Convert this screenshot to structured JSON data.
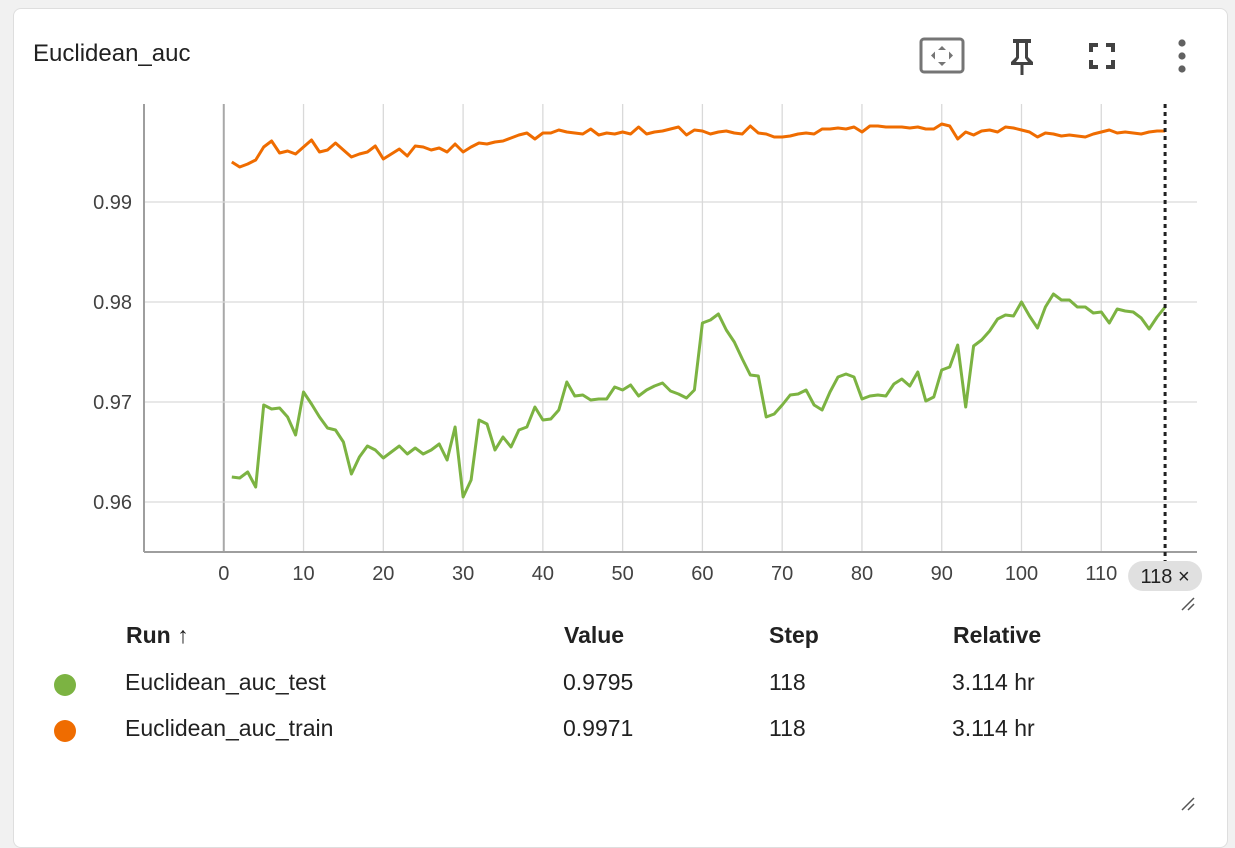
{
  "card": {
    "title": "Euclidean_auc"
  },
  "toolbar": {
    "icons": [
      "fit-domain-icon",
      "pin-icon",
      "fullscreen-icon",
      "more-vert-icon"
    ]
  },
  "colors": {
    "test": "#7cb342",
    "train": "#ef6c00",
    "grid": "#d9d9d9",
    "axis": "#9e9e9e"
  },
  "chart_data": {
    "type": "line",
    "title": "",
    "xlabel": "",
    "ylabel": "",
    "xlim": [
      -10,
      122
    ],
    "ylim": [
      0.955,
      0.9998
    ],
    "x_ticks": [
      0,
      10,
      20,
      30,
      40,
      50,
      60,
      70,
      80,
      90,
      100,
      110
    ],
    "y_ticks": [
      0.96,
      0.97,
      0.98,
      0.99
    ],
    "y_tick_labels": [
      "0.96",
      "0.97",
      "0.98",
      "0.99"
    ],
    "grid": true,
    "hover_step": 118,
    "hover_step_label": "118 ×",
    "series": [
      {
        "name": "Euclidean_auc_test",
        "color": "#7cb342",
        "x": [
          1,
          2,
          3,
          4,
          5,
          6,
          7,
          8,
          9,
          10,
          11,
          12,
          13,
          14,
          15,
          16,
          17,
          18,
          19,
          20,
          21,
          22,
          23,
          24,
          25,
          26,
          27,
          28,
          29,
          30,
          31,
          32,
          33,
          34,
          35,
          36,
          37,
          38,
          39,
          40,
          41,
          42,
          43,
          44,
          45,
          46,
          47,
          48,
          49,
          50,
          51,
          52,
          53,
          54,
          55,
          56,
          57,
          58,
          59,
          60,
          61,
          62,
          63,
          64,
          65,
          66,
          67,
          68,
          69,
          70,
          71,
          72,
          73,
          74,
          75,
          76,
          77,
          78,
          79,
          80,
          81,
          82,
          83,
          84,
          85,
          86,
          87,
          88,
          89,
          90,
          91,
          92,
          93,
          94,
          95,
          96,
          97,
          98,
          99,
          100,
          101,
          102,
          103,
          104,
          105,
          106,
          107,
          108,
          109,
          110,
          111,
          112,
          113,
          114,
          115,
          116,
          117,
          118
        ],
        "y": [
          0.9625,
          0.9624,
          0.963,
          0.9615,
          0.9697,
          0.9693,
          0.9694,
          0.9685,
          0.9667,
          0.971,
          0.9698,
          0.9685,
          0.9674,
          0.9672,
          0.966,
          0.9628,
          0.9645,
          0.9656,
          0.9652,
          0.9644,
          0.965,
          0.9656,
          0.9648,
          0.9654,
          0.9648,
          0.9652,
          0.9658,
          0.9642,
          0.9675,
          0.9605,
          0.9622,
          0.9682,
          0.9678,
          0.9652,
          0.9665,
          0.9655,
          0.9672,
          0.9675,
          0.9695,
          0.9682,
          0.9683,
          0.9692,
          0.972,
          0.9706,
          0.9707,
          0.9702,
          0.9703,
          0.9703,
          0.9715,
          0.9712,
          0.9717,
          0.9706,
          0.9712,
          0.9716,
          0.9719,
          0.9711,
          0.9708,
          0.9704,
          0.9712,
          0.9779,
          0.9782,
          0.9788,
          0.9772,
          0.976,
          0.9743,
          0.9727,
          0.9726,
          0.9685,
          0.9688,
          0.9697,
          0.9707,
          0.9708,
          0.9712,
          0.9697,
          0.9692,
          0.971,
          0.9725,
          0.9728,
          0.9725,
          0.9703,
          0.9706,
          0.9707,
          0.9706,
          0.9718,
          0.9723,
          0.9716,
          0.973,
          0.9701,
          0.9705,
          0.9732,
          0.9735,
          0.9757,
          0.9695,
          0.9756,
          0.9762,
          0.9771,
          0.9783,
          0.9787,
          0.9786,
          0.98,
          0.9786,
          0.9774,
          0.9795,
          0.9808,
          0.9802,
          0.9802,
          0.9795,
          0.9795,
          0.9789,
          0.979,
          0.9779,
          0.9793,
          0.9791,
          0.979,
          0.9784,
          0.9773,
          0.9785,
          0.9795
        ]
      },
      {
        "name": "Euclidean_auc_train",
        "color": "#ef6c00",
        "x": [
          1,
          2,
          3,
          4,
          5,
          6,
          7,
          8,
          9,
          10,
          11,
          12,
          13,
          14,
          15,
          16,
          17,
          18,
          19,
          20,
          21,
          22,
          23,
          24,
          25,
          26,
          27,
          28,
          29,
          30,
          31,
          32,
          33,
          34,
          35,
          36,
          37,
          38,
          39,
          40,
          41,
          42,
          43,
          44,
          45,
          46,
          47,
          48,
          49,
          50,
          51,
          52,
          53,
          54,
          55,
          56,
          57,
          58,
          59,
          60,
          61,
          62,
          63,
          64,
          65,
          66,
          67,
          68,
          69,
          70,
          71,
          72,
          73,
          74,
          75,
          76,
          77,
          78,
          79,
          80,
          81,
          82,
          83,
          84,
          85,
          86,
          87,
          88,
          89,
          90,
          91,
          92,
          93,
          94,
          95,
          96,
          97,
          98,
          99,
          100,
          101,
          102,
          103,
          104,
          105,
          106,
          107,
          108,
          109,
          110,
          111,
          112,
          113,
          114,
          115,
          116,
          117,
          118
        ],
        "y": [
          0.994,
          0.9935,
          0.9938,
          0.9942,
          0.9955,
          0.9961,
          0.9949,
          0.9951,
          0.9948,
          0.9955,
          0.9962,
          0.995,
          0.9952,
          0.9959,
          0.9952,
          0.9945,
          0.9948,
          0.995,
          0.9956,
          0.9943,
          0.9948,
          0.9953,
          0.9946,
          0.9956,
          0.9955,
          0.9952,
          0.9954,
          0.995,
          0.9958,
          0.995,
          0.9955,
          0.9959,
          0.9958,
          0.996,
          0.9961,
          0.9964,
          0.9967,
          0.9969,
          0.9963,
          0.9969,
          0.9969,
          0.9972,
          0.997,
          0.9969,
          0.9968,
          0.9973,
          0.9967,
          0.9969,
          0.9968,
          0.997,
          0.9968,
          0.9975,
          0.9968,
          0.997,
          0.9971,
          0.9973,
          0.9975,
          0.9967,
          0.9972,
          0.9971,
          0.9968,
          0.997,
          0.9971,
          0.9969,
          0.9968,
          0.9976,
          0.9969,
          0.9968,
          0.9965,
          0.9965,
          0.9966,
          0.9968,
          0.9969,
          0.9968,
          0.9973,
          0.9973,
          0.9974,
          0.9973,
          0.9975,
          0.997,
          0.9976,
          0.9976,
          0.9975,
          0.9975,
          0.9975,
          0.9974,
          0.9975,
          0.9973,
          0.9973,
          0.9978,
          0.9976,
          0.9963,
          0.997,
          0.9967,
          0.9971,
          0.9972,
          0.997,
          0.9975,
          0.9974,
          0.9972,
          0.997,
          0.9965,
          0.9969,
          0.9968,
          0.9966,
          0.9967,
          0.9966,
          0.9965,
          0.9968,
          0.997,
          0.9972,
          0.9969,
          0.997,
          0.9969,
          0.9968,
          0.997,
          0.9971,
          0.9971
        ]
      }
    ]
  },
  "table": {
    "headers": {
      "run": "Run ↑",
      "value": "Value",
      "step": "Step",
      "relative": "Relative"
    },
    "rows": [
      {
        "run": "Euclidean_auc_test",
        "value": "0.9795",
        "step": "118",
        "relative": "3.114 hr",
        "color": "#7cb342"
      },
      {
        "run": "Euclidean_auc_train",
        "value": "0.9971",
        "step": "118",
        "relative": "3.114 hr",
        "color": "#ef6c00"
      }
    ]
  }
}
